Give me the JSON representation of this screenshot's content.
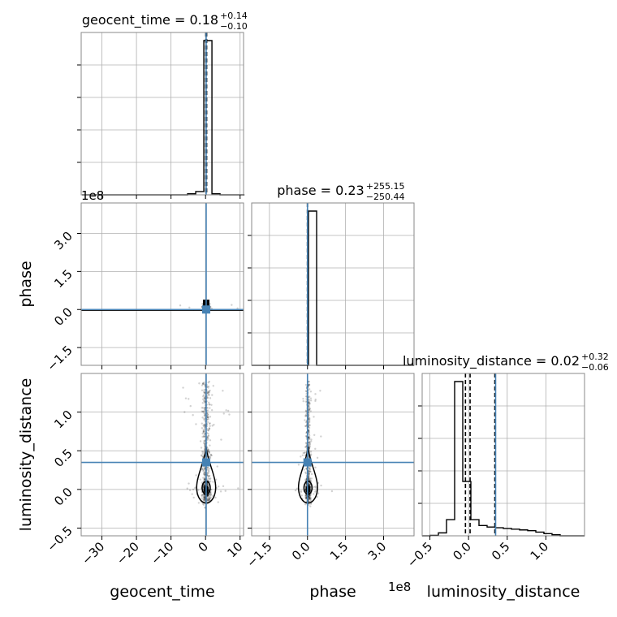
{
  "chart_data": {
    "type": "corner",
    "parameters": [
      "geocent_time",
      "phase",
      "luminosity_distance"
    ],
    "titles": [
      {
        "param": "geocent_time",
        "text": "geocent_time = 0.18",
        "plus": "+0.14",
        "minus": "−0.10"
      },
      {
        "param": "phase",
        "text": "phase = 0.23",
        "plus": "+255.15",
        "minus": "−250.44"
      },
      {
        "param": "luminosity_distance",
        "text": "luminosity_distance = 0.02",
        "plus": "+0.32",
        "minus": "−0.06"
      }
    ],
    "axes": {
      "geocent_time": {
        "label": "geocent_time",
        "range": [
          -36,
          11
        ],
        "ticks": [
          -30,
          -20,
          -10,
          0,
          10
        ],
        "tick_labels": [
          "−30",
          "−20",
          "−10",
          "0",
          "10"
        ]
      },
      "phase": {
        "label": "phase",
        "range": [
          -220000000.0,
          420000000.0
        ],
        "ticks": [
          -150000000.0,
          0,
          150000000.0,
          300000000.0
        ],
        "tick_labels": [
          "−1.5",
          "0.0",
          "1.5",
          "3.0"
        ],
        "offset_text": "1e8"
      },
      "luminosity_distance": {
        "label": "luminosity_distance",
        "range": [
          -0.6,
          1.5
        ],
        "ticks": [
          -0.5,
          0.0,
          0.5,
          1.0
        ],
        "tick_labels": [
          "−0.5",
          "0.0",
          "0.5",
          "1.0"
        ]
      }
    },
    "truths": {
      "geocent_time": 0.18,
      "phase": 0.0,
      "luminosity_distance": 0.35
    },
    "quantiles": {
      "geocent_time": [
        0.08,
        0.18,
        0.32
      ],
      "phase": [
        -250.44,
        0.23,
        255.15
      ],
      "luminosity_distance": [
        -0.04,
        0.02,
        0.34
      ]
    },
    "histograms": {
      "geocent_time": {
        "edges": [
          -35.75,
          -33.4,
          -31.05,
          -28.7,
          -26.35,
          -24.0,
          -21.65,
          -19.3,
          -16.95,
          -14.6,
          -12.25,
          -9.9,
          -7.55,
          -5.2,
          -2.85,
          -0.5,
          1.85,
          4.2,
          6.55,
          8.9,
          11.25
        ],
        "counts": [
          0,
          0,
          0,
          0,
          0,
          0,
          0,
          0,
          0,
          0,
          0,
          0,
          0,
          1,
          3,
          142,
          1,
          0,
          0,
          0
        ]
      },
      "phase": {
        "edges": [
          -220000000.0,
          -188000000.0,
          -156000000.0,
          -124000000.0,
          -92000000.0,
          -60000000.0,
          -28000000.0,
          4000000.0,
          36000000.0,
          68000000.0,
          100000000.0,
          132000000.0,
          164000000.0,
          196000000.0,
          228000000.0,
          260000000.0,
          292000000.0,
          324000000.0,
          356000000.0,
          388000000.0,
          420000000.0
        ],
        "counts": [
          0,
          0,
          0,
          0,
          0,
          0,
          0,
          60,
          0,
          0,
          0,
          0,
          0,
          0,
          0,
          0,
          0,
          0,
          0,
          0
        ]
      },
      "luminosity_distance": {
        "edges": [
          -0.6,
          -0.495,
          -0.39,
          -0.285,
          -0.18,
          -0.075,
          0.03,
          0.135,
          0.24,
          0.345,
          0.45,
          0.555,
          0.66,
          0.765,
          0.87,
          0.975,
          1.08,
          1.185,
          1.29,
          1.395,
          1.5
        ],
        "counts": [
          0,
          0.3,
          2,
          11,
          105,
          37,
          11,
          7,
          6,
          5.5,
          5,
          4.5,
          4,
          3.5,
          2.5,
          1.5,
          0.7,
          0,
          0,
          0
        ]
      }
    },
    "scatter_note": "posterior samples concentrated near geocent_time≈0 and phase≈0 with luminosity_distance spread from -0.2 to 1.4"
  }
}
